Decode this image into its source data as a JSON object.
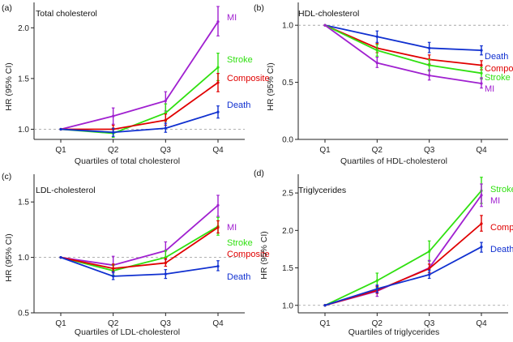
{
  "colors": {
    "MI": "#a020d0",
    "Stroke": "#30e010",
    "Composite": "#e00000",
    "Death": "#1030d0"
  },
  "chart_data": [
    {
      "type": "line",
      "letter": "(a)",
      "title": "Total cholesterol",
      "xlabel": "Quartiles of total cholesterol",
      "ylabel": "HR (95% CI)",
      "categories": [
        "Q1",
        "Q2",
        "Q3",
        "Q4"
      ],
      "ylim": [
        0.9,
        2.25
      ],
      "yticks": [
        1.0,
        1.5,
        2.0
      ],
      "ytick_labels": [
        "1.0",
        "1.5",
        "2.0"
      ],
      "reference_line": 1.0,
      "series": [
        {
          "name": "MI",
          "values": [
            1.0,
            1.13,
            1.28,
            2.06
          ],
          "ci": [
            [
              1.0,
              1.0
            ],
            [
              1.05,
              1.21
            ],
            [
              1.18,
              1.37
            ],
            [
              1.92,
              2.21
            ]
          ]
        },
        {
          "name": "Stroke",
          "values": [
            1.0,
            0.96,
            1.16,
            1.61
          ],
          "ci": [
            [
              1.0,
              1.0
            ],
            [
              0.92,
              1.01
            ],
            [
              1.08,
              1.25
            ],
            [
              1.48,
              1.75
            ]
          ]
        },
        {
          "name": "Composite",
          "values": [
            1.0,
            1.0,
            1.09,
            1.46
          ],
          "ci": [
            [
              1.0,
              1.0
            ],
            [
              0.97,
              1.04
            ],
            [
              1.04,
              1.15
            ],
            [
              1.37,
              1.55
            ]
          ]
        },
        {
          "name": "Death",
          "values": [
            1.0,
            0.97,
            1.01,
            1.17
          ],
          "ci": [
            [
              1.0,
              1.0
            ],
            [
              0.93,
              1.01
            ],
            [
              0.97,
              1.06
            ],
            [
              1.11,
              1.23
            ]
          ]
        }
      ]
    },
    {
      "type": "line",
      "letter": "(b)",
      "title": "HDL-cholesterol",
      "xlabel": "Quartiles of HDL-cholesterol",
      "ylabel": "HR (95% CI)",
      "categories": [
        "Q1",
        "Q2",
        "Q3",
        "Q4"
      ],
      "ylim": [
        0.0,
        1.2
      ],
      "yticks": [
        0.0,
        0.5,
        1.0
      ],
      "ytick_labels": [
        "0.0",
        "0.5",
        "1.0"
      ],
      "reference_line": 1.0,
      "series": [
        {
          "name": "Death",
          "values": [
            1.0,
            0.9,
            0.8,
            0.78
          ],
          "ci": [
            [
              1.0,
              1.0
            ],
            [
              0.85,
              0.95
            ],
            [
              0.76,
              0.85
            ],
            [
              0.74,
              0.82
            ]
          ]
        },
        {
          "name": "Composite",
          "values": [
            1.0,
            0.8,
            0.7,
            0.65
          ],
          "ci": [
            [
              1.0,
              1.0
            ],
            [
              0.76,
              0.84
            ],
            [
              0.66,
              0.74
            ],
            [
              0.61,
              0.69
            ]
          ]
        },
        {
          "name": "Stroke",
          "values": [
            1.0,
            0.78,
            0.65,
            0.58
          ],
          "ci": [
            [
              1.0,
              1.0
            ],
            [
              0.73,
              0.83
            ],
            [
              0.6,
              0.7
            ],
            [
              0.53,
              0.63
            ]
          ]
        },
        {
          "name": "MI",
          "values": [
            1.0,
            0.67,
            0.56,
            0.49
          ],
          "ci": [
            [
              1.0,
              1.0
            ],
            [
              0.63,
              0.72
            ],
            [
              0.52,
              0.61
            ],
            [
              0.45,
              0.54
            ]
          ]
        }
      ]
    },
    {
      "type": "line",
      "letter": "(c)",
      "title": "LDL-cholesterol",
      "xlabel": "Quartiles of LDL-cholesterol",
      "ylabel": "HR (95% CI)",
      "categories": [
        "Q1",
        "Q2",
        "Q3",
        "Q4"
      ],
      "ylim": [
        0.5,
        1.75
      ],
      "yticks": [
        0.5,
        1.0,
        1.5
      ],
      "ytick_labels": [
        "0.5",
        "1.0",
        "1.5"
      ],
      "reference_line": 1.0,
      "series": [
        {
          "name": "MI",
          "values": [
            1.0,
            0.93,
            1.06,
            1.47
          ],
          "ci": [
            [
              1.0,
              1.0
            ],
            [
              0.86,
              1.01
            ],
            [
              0.98,
              1.14
            ],
            [
              1.37,
              1.56
            ]
          ]
        },
        {
          "name": "Stroke",
          "values": [
            1.0,
            0.88,
            1.0,
            1.28
          ],
          "ci": [
            [
              1.0,
              1.0
            ],
            [
              0.84,
              0.93
            ],
            [
              0.95,
              1.06
            ],
            [
              1.2,
              1.36
            ]
          ]
        },
        {
          "name": "Composite",
          "values": [
            1.0,
            0.9,
            0.95,
            1.27
          ],
          "ci": [
            [
              1.0,
              1.0
            ],
            [
              0.87,
              0.94
            ],
            [
              0.92,
              0.99
            ],
            [
              1.22,
              1.33
            ]
          ]
        },
        {
          "name": "Death",
          "values": [
            1.0,
            0.83,
            0.85,
            0.92
          ],
          "ci": [
            [
              1.0,
              1.0
            ],
            [
              0.8,
              0.87
            ],
            [
              0.81,
              0.89
            ],
            [
              0.88,
              0.97
            ]
          ]
        }
      ]
    },
    {
      "type": "line",
      "letter": "(d)",
      "title": "Triglycerides",
      "xlabel": "Quartiles of triglycerides",
      "ylabel": "HR (95% CI)",
      "categories": [
        "Q1",
        "Q2",
        "Q3",
        "Q4"
      ],
      "ylim": [
        0.9,
        2.75
      ],
      "yticks": [
        1.0,
        1.5,
        2.0,
        2.5
      ],
      "ytick_labels": [
        "1.0",
        "1.5",
        "2.0",
        "2.5"
      ],
      "reference_line": 1.0,
      "series": [
        {
          "name": "Stroke",
          "values": [
            1.0,
            1.33,
            1.72,
            2.53
          ],
          "ci": [
            [
              1.0,
              1.0
            ],
            [
              1.24,
              1.43
            ],
            [
              1.59,
              1.86
            ],
            [
              2.36,
              2.71
            ]
          ]
        },
        {
          "name": "MI",
          "values": [
            1.0,
            1.19,
            1.5,
            2.47
          ],
          "ci": [
            [
              1.0,
              1.0
            ],
            [
              1.12,
              1.26
            ],
            [
              1.41,
              1.6
            ],
            [
              2.32,
              2.62
            ]
          ]
        },
        {
          "name": "Composite",
          "values": [
            1.0,
            1.2,
            1.49,
            2.09
          ],
          "ci": [
            [
              1.0,
              1.0
            ],
            [
              1.16,
              1.25
            ],
            [
              1.44,
              1.55
            ],
            [
              1.99,
              2.2
            ]
          ]
        },
        {
          "name": "Death",
          "values": [
            1.0,
            1.22,
            1.41,
            1.78
          ],
          "ci": [
            [
              1.0,
              1.0
            ],
            [
              1.17,
              1.27
            ],
            [
              1.36,
              1.47
            ],
            [
              1.71,
              1.84
            ]
          ]
        }
      ]
    }
  ]
}
